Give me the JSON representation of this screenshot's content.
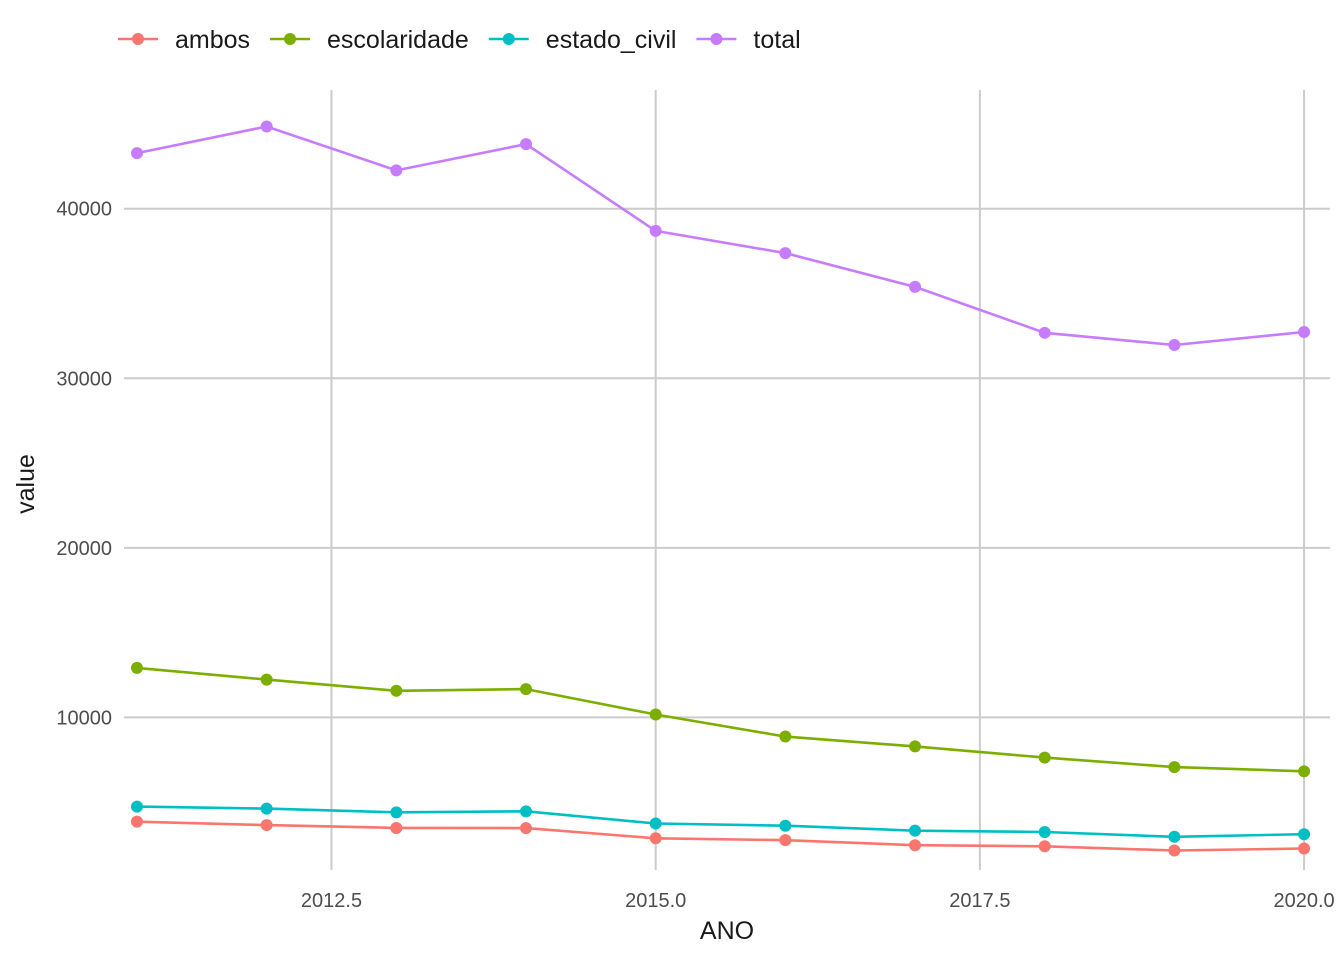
{
  "chart_data": {
    "type": "line",
    "xlabel": "ANO",
    "ylabel": "value",
    "x": [
      2011,
      2012,
      2013,
      2014,
      2015,
      2016,
      2017,
      2018,
      2019,
      2020
    ],
    "xlim": [
      2010.9,
      2020.2
    ],
    "ylim": [
      1000,
      47000
    ],
    "x_ticks": [
      2012.5,
      2015.0,
      2017.5,
      2020.0
    ],
    "x_tick_labels": [
      "2012.5",
      "2015.0",
      "2017.5",
      "2020.0"
    ],
    "y_ticks": [
      10000,
      20000,
      30000,
      40000
    ],
    "y_tick_labels": [
      "10000",
      "20000",
      "30000",
      "40000"
    ],
    "grid": true,
    "legend_position": "top-left",
    "series": [
      {
        "name": "ambos",
        "color": "#F8766D",
        "values": [
          3850,
          3650,
          3480,
          3470,
          2870,
          2760,
          2460,
          2400,
          2150,
          2270
        ]
      },
      {
        "name": "escolaridade",
        "color": "#7CAE00",
        "values": [
          12920,
          12230,
          11570,
          11670,
          10170,
          8870,
          8290,
          7630,
          7070,
          6820
        ]
      },
      {
        "name": "estado_civil",
        "color": "#00BFC4",
        "values": [
          4740,
          4620,
          4400,
          4460,
          3740,
          3610,
          3320,
          3240,
          2960,
          3110
        ]
      },
      {
        "name": "total",
        "color": "#C77CFF",
        "values": [
          43280,
          44850,
          42260,
          43810,
          38690,
          37380,
          35390,
          32680,
          31960,
          32730
        ]
      }
    ]
  }
}
